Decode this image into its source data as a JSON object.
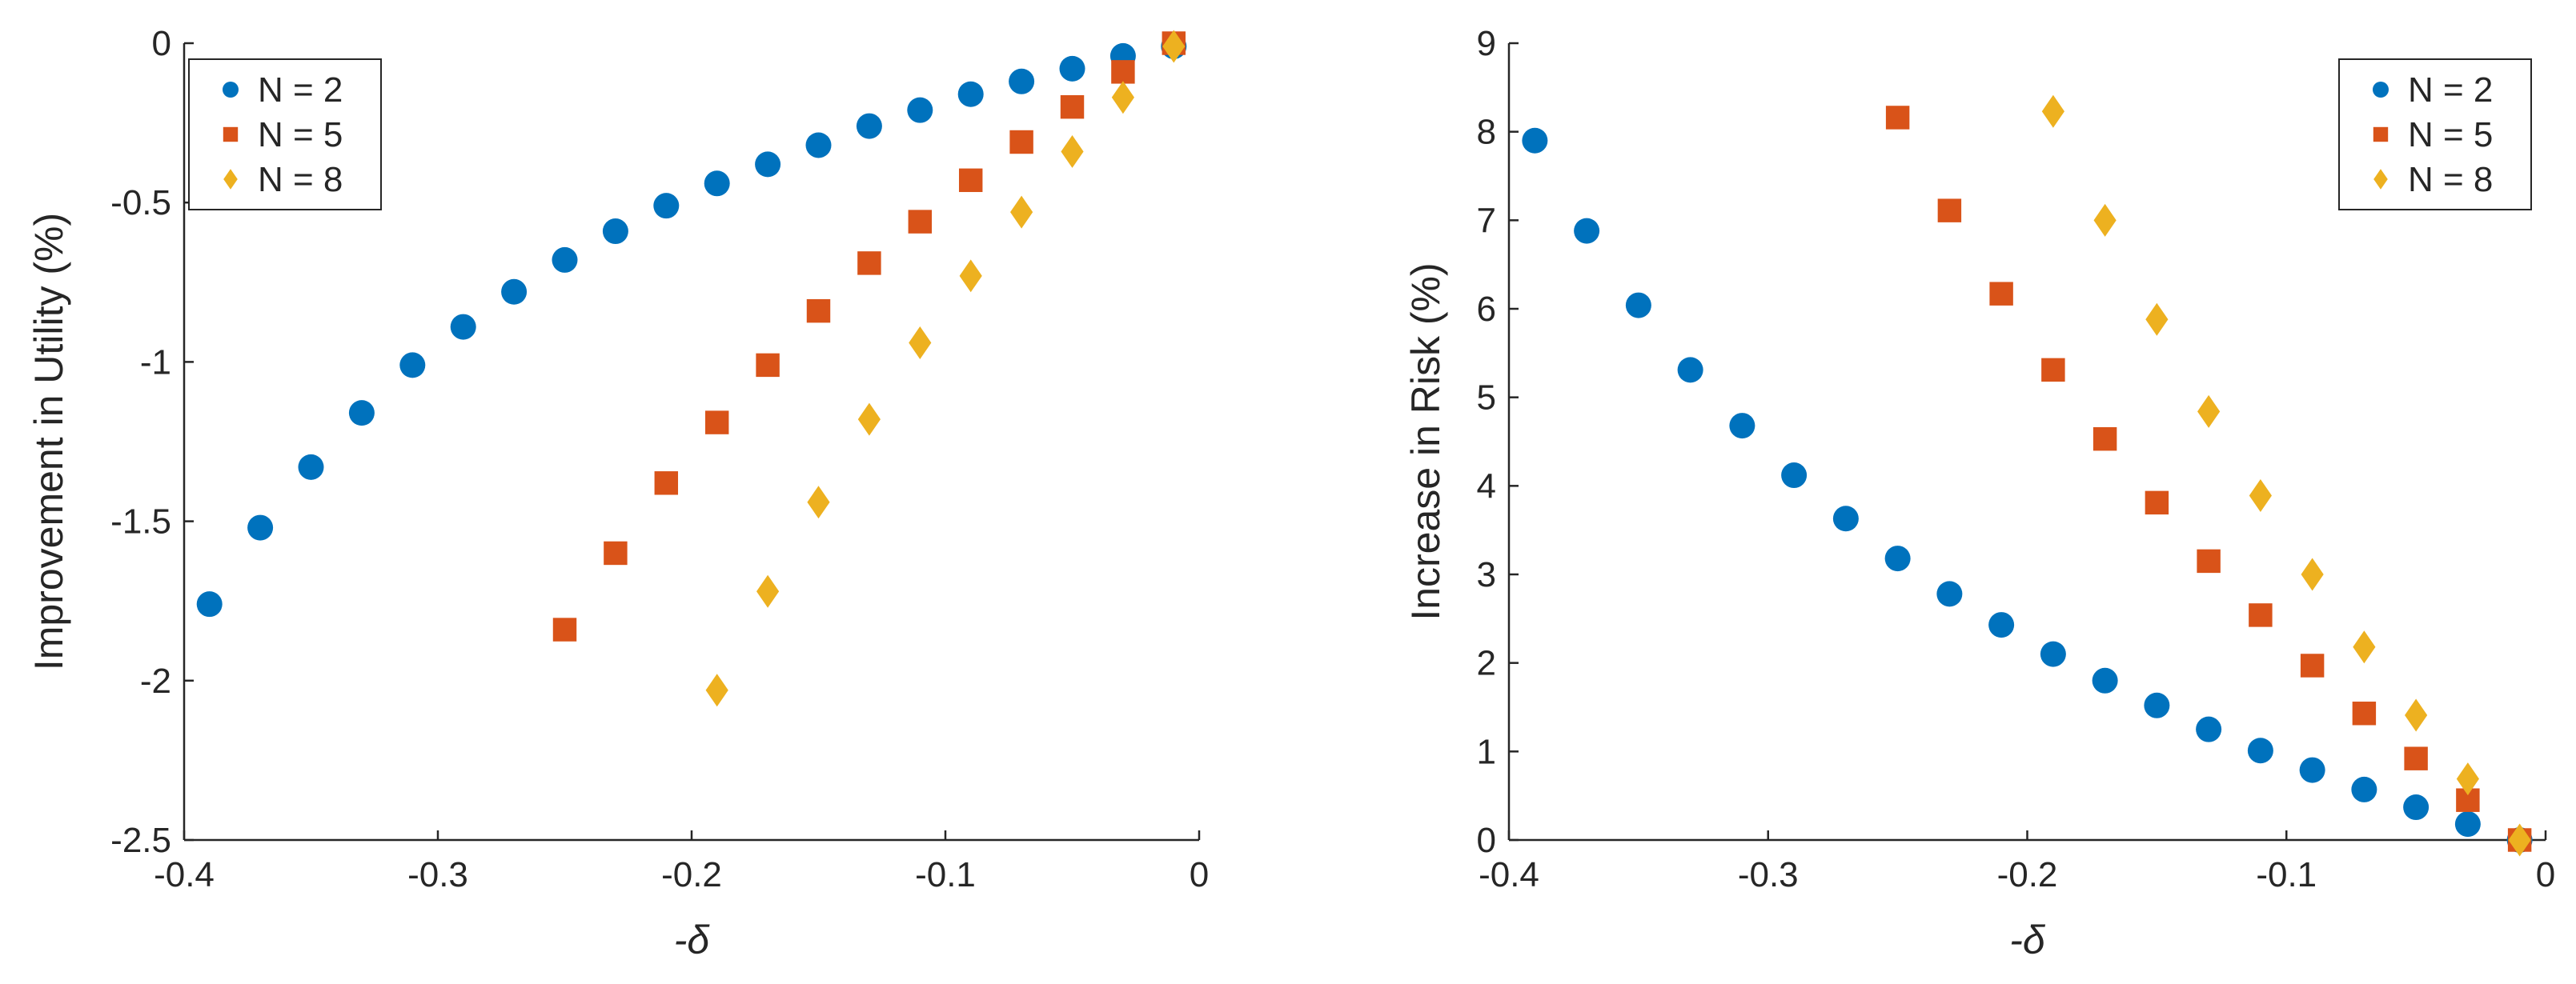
{
  "colors": {
    "n2": "#0072BD",
    "n5": "#D95319",
    "n8": "#EDB120",
    "axis": "#262626"
  },
  "chart_data": [
    {
      "type": "scatter",
      "title": "",
      "xlabel": "-δ",
      "ylabel": "Improvement in Utility (%)",
      "xlim": [
        -0.4,
        0
      ],
      "ylim": [
        -2.5,
        0
      ],
      "xticks": [
        -0.4,
        -0.3,
        -0.2,
        -0.1,
        0
      ],
      "xtick_labels": [
        "-0.4",
        "-0.3",
        "-0.2",
        "-0.1",
        "0"
      ],
      "yticks": [
        -2.5,
        -2,
        -1.5,
        -1,
        -0.5,
        0
      ],
      "ytick_labels": [
        "-2.5",
        "-2",
        "-1.5",
        "-1",
        "-0.5",
        "0"
      ],
      "legend_position": "top-left",
      "series": [
        {
          "name": "N = 2",
          "marker": "circle",
          "color": "#0072BD",
          "x": [
            -0.39,
            -0.37,
            -0.35,
            -0.33,
            -0.31,
            -0.29,
            -0.27,
            -0.25,
            -0.23,
            -0.21,
            -0.19,
            -0.17,
            -0.15,
            -0.13,
            -0.11,
            -0.09,
            -0.07,
            -0.05,
            -0.03,
            -0.01
          ],
          "y": [
            -1.76,
            -1.52,
            -1.33,
            -1.16,
            -1.01,
            -0.89,
            -0.78,
            -0.68,
            -0.59,
            -0.51,
            -0.44,
            -0.38,
            -0.32,
            -0.26,
            -0.21,
            -0.16,
            -0.12,
            -0.08,
            -0.04,
            -0.01
          ]
        },
        {
          "name": "N = 5",
          "marker": "square",
          "color": "#D95319",
          "x": [
            -0.25,
            -0.23,
            -0.21,
            -0.19,
            -0.17,
            -0.15,
            -0.13,
            -0.11,
            -0.09,
            -0.07,
            -0.05,
            -0.03,
            -0.01
          ],
          "y": [
            -1.84,
            -1.6,
            -1.38,
            -1.19,
            -1.01,
            -0.84,
            -0.69,
            -0.56,
            -0.43,
            -0.31,
            -0.2,
            -0.09,
            0.0
          ]
        },
        {
          "name": "N = 8",
          "marker": "diamond",
          "color": "#EDB120",
          "x": [
            -0.19,
            -0.17,
            -0.15,
            -0.13,
            -0.11,
            -0.09,
            -0.07,
            -0.05,
            -0.03,
            -0.01
          ],
          "y": [
            -2.03,
            -1.72,
            -1.44,
            -1.18,
            -0.94,
            -0.73,
            -0.53,
            -0.34,
            -0.17,
            -0.01
          ]
        }
      ]
    },
    {
      "type": "scatter",
      "title": "",
      "xlabel": "-δ",
      "ylabel": "Increase in Risk (%)",
      "xlim": [
        -0.4,
        0
      ],
      "ylim": [
        0,
        9
      ],
      "xticks": [
        -0.4,
        -0.3,
        -0.2,
        -0.1,
        0
      ],
      "xtick_labels": [
        "-0.4",
        "-0.3",
        "-0.2",
        "-0.1",
        "0"
      ],
      "yticks": [
        0,
        1,
        2,
        3,
        4,
        5,
        6,
        7,
        8,
        9
      ],
      "ytick_labels": [
        "0",
        "1",
        "2",
        "3",
        "4",
        "5",
        "6",
        "7",
        "8",
        "9"
      ],
      "legend_position": "top-right",
      "series": [
        {
          "name": "N = 2",
          "marker": "circle",
          "color": "#0072BD",
          "x": [
            -0.39,
            -0.37,
            -0.35,
            -0.33,
            -0.31,
            -0.29,
            -0.27,
            -0.25,
            -0.23,
            -0.21,
            -0.19,
            -0.17,
            -0.15,
            -0.13,
            -0.11,
            -0.09,
            -0.07,
            -0.05,
            -0.03,
            -0.01
          ],
          "y": [
            7.9,
            6.88,
            6.04,
            5.31,
            4.68,
            4.12,
            3.63,
            3.18,
            2.78,
            2.43,
            2.1,
            1.8,
            1.52,
            1.25,
            1.01,
            0.79,
            0.57,
            0.37,
            0.18,
            0.0
          ]
        },
        {
          "name": "N = 5",
          "marker": "square",
          "color": "#D95319",
          "x": [
            -0.25,
            -0.23,
            -0.21,
            -0.19,
            -0.17,
            -0.15,
            -0.13,
            -0.11,
            -0.09,
            -0.07,
            -0.05,
            -0.03,
            -0.01
          ],
          "y": [
            8.16,
            7.11,
            6.17,
            5.31,
            4.53,
            3.81,
            3.15,
            2.54,
            1.97,
            1.43,
            0.92,
            0.45,
            0.0
          ]
        },
        {
          "name": "N = 8",
          "marker": "diamond",
          "color": "#EDB120",
          "x": [
            -0.19,
            -0.17,
            -0.15,
            -0.13,
            -0.11,
            -0.09,
            -0.07,
            -0.05,
            -0.03,
            -0.01
          ],
          "y": [
            8.23,
            7.0,
            5.88,
            4.84,
            3.89,
            3.0,
            2.18,
            1.41,
            0.69,
            0.0
          ]
        }
      ]
    }
  ]
}
